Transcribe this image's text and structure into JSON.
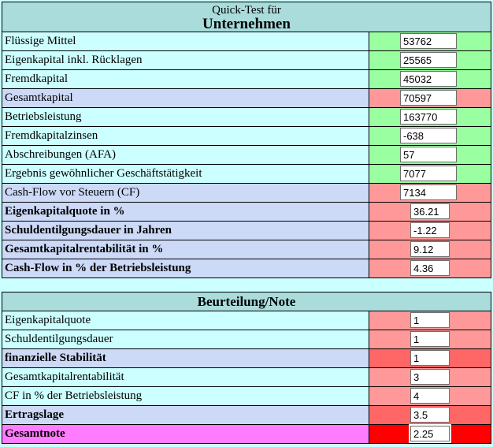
{
  "palette": {
    "page_bg": "#ccffff",
    "header_bg": "#aadcdc",
    "label_cyan": "#ccffff",
    "label_lavender": "#ccd9f7",
    "label_magenta": "#ff7bff",
    "cell_green": "#99ffa0",
    "cell_salmon": "#ff9999",
    "cell_red_strong": "#ff6666",
    "cell_red": "#ff0000",
    "border": "#000000"
  },
  "quicktest": {
    "title_line1": "Quick-Test für",
    "title_line2": "Unternehmen",
    "rows": [
      {
        "label": "Flüssige Mittel",
        "value": "53762"
      },
      {
        "label": "Eigenkapital inkl. Rücklagen",
        "value": "25565"
      },
      {
        "label": "Fremdkapital",
        "value": "45032"
      },
      {
        "label": "Gesamtkapital",
        "value": "70597"
      },
      {
        "label": "Betriebsleistung",
        "value": "163770"
      },
      {
        "label": "Fremdkapitalzinsen",
        "value": "-638"
      },
      {
        "label": "Abschreibungen (AFA)",
        "value": "57"
      },
      {
        "label": "Ergebnis gewöhnlicher Geschäftstätigkeit",
        "value": "7077"
      },
      {
        "label": "Cash-Flow vor Steuern (CF)",
        "value": "7134"
      },
      {
        "label": "Eigenkapitalquote in %",
        "value": "36.21"
      },
      {
        "label": "Schuldentilgungsdauer in Jahren",
        "value": "-1.22"
      },
      {
        "label": "Gesamtkapitalrentabilität in %",
        "value": "9.12"
      },
      {
        "label": "Cash-Flow in % der Betriebsleistung",
        "value": "4.36"
      }
    ]
  },
  "rating": {
    "title": "Beurteilung/Note",
    "rows": [
      {
        "label": "Eigenkapitalquote",
        "value": "1"
      },
      {
        "label": "Schuldentilgungsdauer",
        "value": "1"
      },
      {
        "label": "finanzielle Stabilität",
        "value": "1"
      },
      {
        "label": "Gesamtkapitalrentabilität",
        "value": "3"
      },
      {
        "label": "CF in % der Betriebsleistung",
        "value": "4"
      },
      {
        "label": "Ertragslage",
        "value": "3.5"
      },
      {
        "label": "Gesamtnote",
        "value": "2.25"
      }
    ]
  }
}
